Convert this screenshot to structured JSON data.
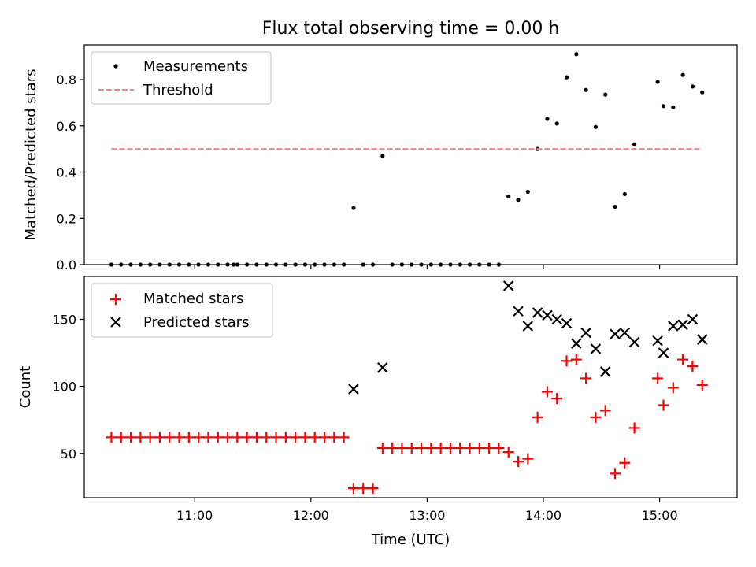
{
  "figure": {
    "title": "Flux total observing time = 0.00 h",
    "xlabel": "Time (UTC)"
  },
  "chart_data": [
    {
      "type": "scatter",
      "panel": "top",
      "ylabel": "Matched/Predicted stars",
      "xlim": [
        "10:03",
        "15:40"
      ],
      "ylim": [
        0,
        0.95
      ],
      "yticks": [
        0.0,
        0.2,
        0.4,
        0.6,
        0.8
      ],
      "ytick_labels": [
        "0.0",
        "0.2",
        "0.4",
        "0.6",
        "0.8"
      ],
      "legend_position": "upper-left",
      "series": [
        {
          "name": "Measurements",
          "marker": "dot",
          "color": "#000000",
          "points": [
            [
              "10:17",
              0.0
            ],
            [
              "10:22",
              0.0
            ],
            [
              "10:27",
              0.0
            ],
            [
              "10:32",
              0.0
            ],
            [
              "10:37",
              0.0
            ],
            [
              "10:42",
              0.0
            ],
            [
              "10:47",
              0.0
            ],
            [
              "10:52",
              0.0
            ],
            [
              "10:57",
              0.0
            ],
            [
              "11:02",
              0.0
            ],
            [
              "11:07",
              0.0
            ],
            [
              "11:12",
              0.0
            ],
            [
              "11:17",
              0.0
            ],
            [
              "11:20",
              0.0
            ],
            [
              "11:22",
              0.0
            ],
            [
              "11:27",
              0.0
            ],
            [
              "11:32",
              0.0
            ],
            [
              "11:37",
              0.0
            ],
            [
              "11:42",
              0.0
            ],
            [
              "11:47",
              0.0
            ],
            [
              "11:52",
              0.0
            ],
            [
              "11:57",
              0.0
            ],
            [
              "12:02",
              0.0
            ],
            [
              "12:07",
              0.0
            ],
            [
              "12:12",
              0.0
            ],
            [
              "12:17",
              0.0
            ],
            [
              "12:22",
              0.245
            ],
            [
              "12:27",
              0.0
            ],
            [
              "12:32",
              0.0
            ],
            [
              "12:37",
              0.47
            ],
            [
              "12:42",
              0.0
            ],
            [
              "12:47",
              0.0
            ],
            [
              "12:52",
              0.0
            ],
            [
              "12:57",
              0.0
            ],
            [
              "13:02",
              0.0
            ],
            [
              "13:07",
              0.0
            ],
            [
              "13:12",
              0.0
            ],
            [
              "13:17",
              0.0
            ],
            [
              "13:22",
              0.0
            ],
            [
              "13:27",
              0.0
            ],
            [
              "13:32",
              0.0
            ],
            [
              "13:37",
              0.0
            ],
            [
              "13:42",
              0.295
            ],
            [
              "13:47",
              0.28
            ],
            [
              "13:52",
              0.315
            ],
            [
              "13:57",
              0.5
            ],
            [
              "14:02",
              0.63
            ],
            [
              "14:07",
              0.61
            ],
            [
              "14:12",
              0.81
            ],
            [
              "14:17",
              0.91
            ],
            [
              "14:22",
              0.755
            ],
            [
              "14:27",
              0.595
            ],
            [
              "14:32",
              0.735
            ],
            [
              "14:37",
              0.25
            ],
            [
              "14:42",
              0.305
            ],
            [
              "14:47",
              0.52
            ],
            [
              "14:59",
              0.79
            ],
            [
              "15:02",
              0.685
            ],
            [
              "15:07",
              0.68
            ],
            [
              "15:12",
              0.82
            ],
            [
              "15:17",
              0.77
            ],
            [
              "15:22",
              0.745
            ]
          ]
        },
        {
          "name": "Threshold",
          "marker": "dashed-line",
          "color": "#ff7f7f",
          "points": [
            [
              "10:17",
              0.5
            ],
            [
              "15:22",
              0.5
            ]
          ]
        }
      ]
    },
    {
      "type": "scatter",
      "panel": "bottom",
      "ylabel": "Count",
      "xlim": [
        "10:03",
        "15:40"
      ],
      "ylim": [
        17,
        182
      ],
      "yticks": [
        50,
        100,
        150
      ],
      "ytick_labels": [
        "50",
        "100",
        "150"
      ],
      "xticks": [
        "11:00",
        "12:00",
        "13:00",
        "14:00",
        "15:00"
      ],
      "xtick_labels": [
        "11:00",
        "12:00",
        "13:00",
        "14:00",
        "15:00"
      ],
      "legend_position": "upper-left",
      "series": [
        {
          "name": "Matched stars",
          "marker": "plus",
          "color": "#ff0000",
          "points": [
            [
              "10:17",
              62
            ],
            [
              "10:22",
              62
            ],
            [
              "10:27",
              62
            ],
            [
              "10:32",
              62
            ],
            [
              "10:37",
              62
            ],
            [
              "10:42",
              62
            ],
            [
              "10:47",
              62
            ],
            [
              "10:52",
              62
            ],
            [
              "10:57",
              62
            ],
            [
              "11:02",
              62
            ],
            [
              "11:07",
              62
            ],
            [
              "11:12",
              62
            ],
            [
              "11:17",
              62
            ],
            [
              "11:22",
              62
            ],
            [
              "11:27",
              62
            ],
            [
              "11:32",
              62
            ],
            [
              "11:37",
              62
            ],
            [
              "11:42",
              62
            ],
            [
              "11:47",
              62
            ],
            [
              "11:52",
              62
            ],
            [
              "11:57",
              62
            ],
            [
              "12:02",
              62
            ],
            [
              "12:07",
              62
            ],
            [
              "12:12",
              62
            ],
            [
              "12:17",
              62
            ],
            [
              "12:22",
              24
            ],
            [
              "12:27",
              24
            ],
            [
              "12:32",
              24
            ],
            [
              "12:37",
              54
            ],
            [
              "12:42",
              54
            ],
            [
              "12:47",
              54
            ],
            [
              "12:52",
              54
            ],
            [
              "12:57",
              54
            ],
            [
              "13:02",
              54
            ],
            [
              "13:07",
              54
            ],
            [
              "13:12",
              54
            ],
            [
              "13:17",
              54
            ],
            [
              "13:22",
              54
            ],
            [
              "13:27",
              54
            ],
            [
              "13:32",
              54
            ],
            [
              "13:37",
              54
            ],
            [
              "13:42",
              51
            ],
            [
              "13:47",
              44
            ],
            [
              "13:52",
              46
            ],
            [
              "13:57",
              77
            ],
            [
              "14:02",
              96
            ],
            [
              "14:07",
              91
            ],
            [
              "14:12",
              119
            ],
            [
              "14:17",
              120
            ],
            [
              "14:22",
              106
            ],
            [
              "14:27",
              77
            ],
            [
              "14:32",
              82
            ],
            [
              "14:37",
              35
            ],
            [
              "14:42",
              43
            ],
            [
              "14:47",
              69
            ],
            [
              "14:59",
              106
            ],
            [
              "15:02",
              86
            ],
            [
              "15:07",
              99
            ],
            [
              "15:12",
              120
            ],
            [
              "15:17",
              115
            ],
            [
              "15:22",
              101
            ]
          ]
        },
        {
          "name": "Predicted stars",
          "marker": "x",
          "color": "#000000",
          "points": [
            [
              "12:22",
              98
            ],
            [
              "12:37",
              114
            ],
            [
              "13:42",
              175
            ],
            [
              "13:47",
              156
            ],
            [
              "13:52",
              145
            ],
            [
              "13:57",
              155
            ],
            [
              "14:02",
              153
            ],
            [
              "14:07",
              150
            ],
            [
              "14:12",
              147
            ],
            [
              "14:17",
              132
            ],
            [
              "14:22",
              140
            ],
            [
              "14:27",
              128
            ],
            [
              "14:32",
              111
            ],
            [
              "14:37",
              139
            ],
            [
              "14:42",
              140
            ],
            [
              "14:47",
              133
            ],
            [
              "14:59",
              134
            ],
            [
              "15:02",
              125
            ],
            [
              "15:07",
              145
            ],
            [
              "15:12",
              146
            ],
            [
              "15:17",
              150
            ],
            [
              "15:22",
              135
            ]
          ]
        }
      ]
    }
  ]
}
